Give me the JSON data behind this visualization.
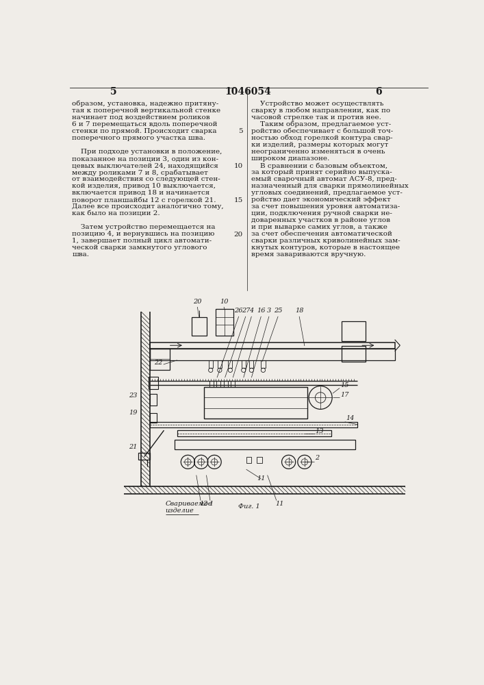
{
  "page_number_left": "5",
  "page_number_center": "1046054",
  "page_number_right": "6",
  "background_color": "#f0ede8",
  "text_color": "#1a1a1a",
  "left_col_text": [
    [
      "образом, установка, надежно притяну-",
      false
    ],
    [
      "тая к поперечной вертикальной стенке",
      false
    ],
    [
      "начинает под воздействием роликов",
      false
    ],
    [
      "6 и 7 перемещаться вдоль поперечной",
      false
    ],
    [
      "стенки по прямой. Происходит сварка",
      false
    ],
    [
      "поперечного прямого участка шва.",
      false
    ],
    [
      "",
      false
    ],
    [
      "    При подходе установки в положение,",
      false
    ],
    [
      "показанное на позиции 3, один из кон-",
      false
    ],
    [
      "цевых выключателей 24, находящийся",
      false
    ],
    [
      "между роликами 7 и 8, срабатывает",
      false
    ],
    [
      "от взаимодействия со следующей стен-",
      false
    ],
    [
      "кой изделия, привод 10 выключается,",
      false
    ],
    [
      "включается привод 18 и начинается",
      false
    ],
    [
      "поворот планшайбы 12 с горелкой 21.",
      false
    ],
    [
      "Далее все происходит аналогично тому,",
      false
    ],
    [
      "как было на позиции 2.",
      false
    ],
    [
      "",
      false
    ],
    [
      "    Затем устройство перемещается на",
      false
    ],
    [
      "позицию 4, и вернувшись на позицию",
      false
    ],
    [
      "1, завершает полный цикл автомати-",
      false
    ],
    [
      "ческой сварки замкнутого углового",
      false
    ],
    [
      "шва.",
      false
    ]
  ],
  "right_col_text": [
    "    Устройство может осуществлять",
    "сварку в любом направлении, как по",
    "часовой стрелке так и против нее.",
    "    Таким образом, предлагаемое уст-",
    "ройство обеспечивает с большой точ-",
    "ностью обход горелкой контура свар-",
    "ки изделий, размеры которых могут",
    "неограниченно изменяться в очень",
    "широком диапазоне.",
    "    В сравнении с базовым объектом,",
    "за который принят серийно выпуска-",
    "емый сварочный автомат АСУ-8, пред-",
    "назначенный для сварки прямолинейных",
    "угловых соединений, предлагаемое уст-",
    "ройство дает экономический эффект",
    "за счет повышения уровня автоматиза-",
    "ции, подключения ручной сварки не-",
    "доваренных участков в районе углов",
    "и при выварке самих углов, а также",
    "за счет обеспечения автоматической",
    "сварки различных криволинейных зам-",
    "кнутых контуров, которые в настоящее",
    "время завариваются вручную."
  ],
  "line_numbers": [
    [
      5,
      4
    ],
    [
      10,
      9
    ],
    [
      15,
      14
    ],
    [
      20,
      19
    ]
  ],
  "fig_caption": "Фиг. 1"
}
